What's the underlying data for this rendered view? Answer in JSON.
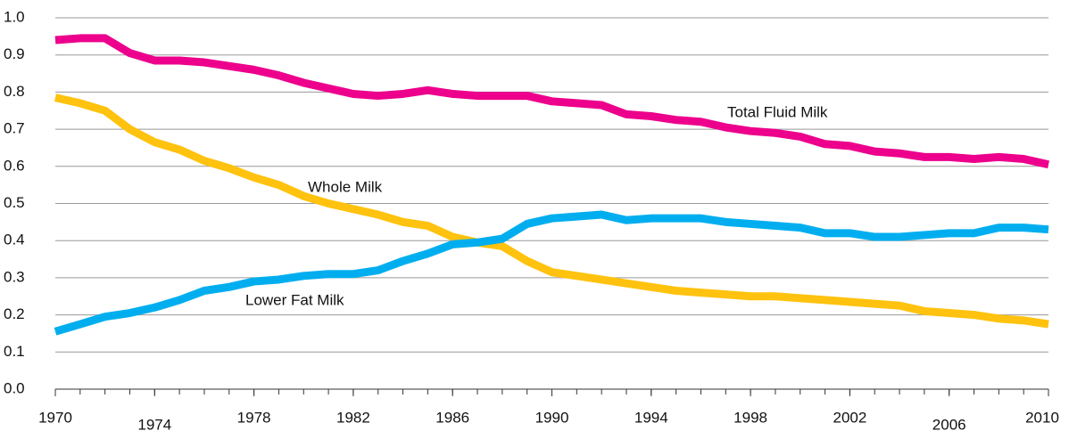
{
  "chart_data": {
    "type": "line",
    "x": [
      1970,
      1971,
      1972,
      1973,
      1974,
      1975,
      1976,
      1977,
      1978,
      1979,
      1980,
      1981,
      1982,
      1983,
      1984,
      1985,
      1986,
      1987,
      1988,
      1989,
      1990,
      1991,
      1992,
      1993,
      1994,
      1995,
      1996,
      1997,
      1998,
      1999,
      2000,
      2001,
      2002,
      2003,
      2004,
      2005,
      2006,
      2007,
      2008,
      2009,
      2010
    ],
    "series": [
      {
        "name": "Total Fluid Milk",
        "color": "#ec008c",
        "values": [
          0.94,
          0.945,
          0.945,
          0.905,
          0.885,
          0.885,
          0.88,
          0.87,
          0.86,
          0.845,
          0.825,
          0.81,
          0.795,
          0.79,
          0.795,
          0.805,
          0.795,
          0.79,
          0.79,
          0.79,
          0.775,
          0.77,
          0.765,
          0.74,
          0.735,
          0.725,
          0.72,
          0.705,
          0.695,
          0.69,
          0.68,
          0.66,
          0.655,
          0.64,
          0.635,
          0.625,
          0.625,
          0.62,
          0.625,
          0.62,
          0.605
        ]
      },
      {
        "name": "Whole Milk",
        "color": "#ffc20e",
        "values": [
          0.785,
          0.77,
          0.75,
          0.7,
          0.665,
          0.645,
          0.615,
          0.595,
          0.57,
          0.55,
          0.52,
          0.5,
          0.485,
          0.47,
          0.45,
          0.44,
          0.41,
          0.395,
          0.385,
          0.345,
          0.315,
          0.305,
          0.295,
          0.285,
          0.275,
          0.265,
          0.26,
          0.255,
          0.25,
          0.25,
          0.245,
          0.24,
          0.235,
          0.23,
          0.225,
          0.21,
          0.205,
          0.2,
          0.19,
          0.185,
          0.175
        ]
      },
      {
        "name": "Lower Fat Milk",
        "color": "#00aeef",
        "values": [
          0.155,
          0.175,
          0.195,
          0.205,
          0.22,
          0.24,
          0.265,
          0.275,
          0.29,
          0.295,
          0.305,
          0.31,
          0.31,
          0.32,
          0.345,
          0.365,
          0.39,
          0.395,
          0.405,
          0.445,
          0.46,
          0.465,
          0.47,
          0.455,
          0.46,
          0.46,
          0.46,
          0.45,
          0.445,
          0.44,
          0.435,
          0.42,
          0.42,
          0.41,
          0.41,
          0.415,
          0.42,
          0.42,
          0.435,
          0.435,
          0.43
        ]
      }
    ],
    "xlim": [
      1970,
      2010
    ],
    "xticks": [
      1970,
      1974,
      1978,
      1982,
      1986,
      1990,
      1994,
      1998,
      2002,
      2006,
      2010
    ],
    "ylim": [
      0,
      1
    ],
    "yticks": [
      {
        "value": 0,
        "label": "0.0"
      },
      0.1,
      0.2,
      0.3,
      0.4,
      0.5,
      0.6,
      0.7,
      0.8,
      0.9,
      {
        "value": 1,
        "label": "1.0"
      }
    ],
    "grid": true
  }
}
